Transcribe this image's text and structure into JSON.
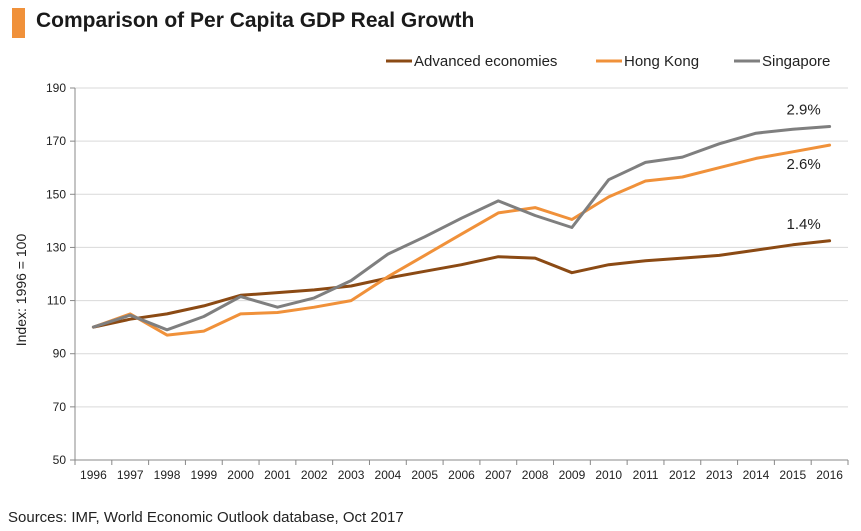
{
  "header": {
    "title": "Comparison of Per Capita GDP Real Growth"
  },
  "footer": {
    "source": "Sources: IMF, World Economic Outlook database, Oct 2017"
  },
  "chart_data": {
    "type": "line",
    "title": "Comparison of Per Capita GDP Real Growth",
    "ylabel": "Index: 1996 = 100",
    "xlabel": "",
    "ylim": [
      50,
      190
    ],
    "yticks": [
      50,
      70,
      90,
      110,
      130,
      150,
      170,
      190
    ],
    "grid": "horizontal",
    "legend_position": "top-right",
    "categories": [
      "1996",
      "1997",
      "1998",
      "1999",
      "2000",
      "2001",
      "2002",
      "2003",
      "2004",
      "2005",
      "2006",
      "2007",
      "2008",
      "2009",
      "2010",
      "2011",
      "2012",
      "2013",
      "2014",
      "2015",
      "2016"
    ],
    "series": [
      {
        "name": "Advanced economies",
        "color": "#8b4a14",
        "values": [
          100,
          103,
          105,
          108,
          112,
          113,
          114,
          115.5,
          118.5,
          121,
          123.5,
          126.5,
          126,
          120.5,
          123.5,
          125,
          126,
          127,
          129,
          131,
          132.5
        ],
        "end_label": "1.4%"
      },
      {
        "name": "Hong Kong",
        "color": "#f0913a",
        "values": [
          100,
          105,
          97,
          98.5,
          105,
          105.5,
          107.5,
          110,
          119,
          127,
          135,
          143,
          145,
          140.5,
          149,
          155,
          156.5,
          160,
          163.5,
          166,
          168.5
        ],
        "end_label": "2.6%"
      },
      {
        "name": "Singapore",
        "color": "#7f7f7f",
        "values": [
          100,
          104.5,
          99,
          104,
          111.5,
          107.5,
          111,
          117.5,
          127.5,
          134,
          141,
          147.5,
          142,
          137.5,
          155.5,
          162,
          164,
          169,
          173,
          174.5,
          175.5
        ],
        "end_label": "2.9%"
      }
    ]
  }
}
